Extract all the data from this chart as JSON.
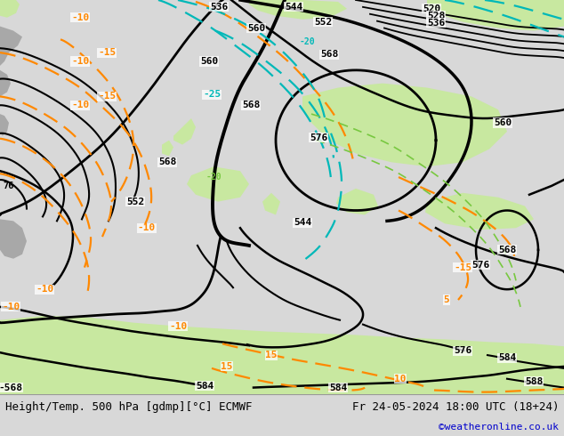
{
  "title_left": "Height/Temp. 500 hPa [gdmp][°C] ECMWF",
  "title_right": "Fr 24-05-2024 18:00 UTC (18+24)",
  "credit": "©weatheronline.co.uk",
  "bg_color": "#d8d8d8",
  "land_green_light": "#c8e8a0",
  "land_green_medium": "#b8dc88",
  "land_gray": "#a8a8a8",
  "sea_color": "#c8c8c8",
  "contour_black": "#000000",
  "contour_orange": "#ff8800",
  "contour_cyan": "#00b8b8",
  "contour_green": "#78c840",
  "bottom_bg": "#e8e8e8",
  "credit_color": "#0000cc",
  "font_size_title": 9,
  "font_size_credit": 8,
  "fig_width": 6.34,
  "fig_height": 4.9,
  "dpi": 100
}
